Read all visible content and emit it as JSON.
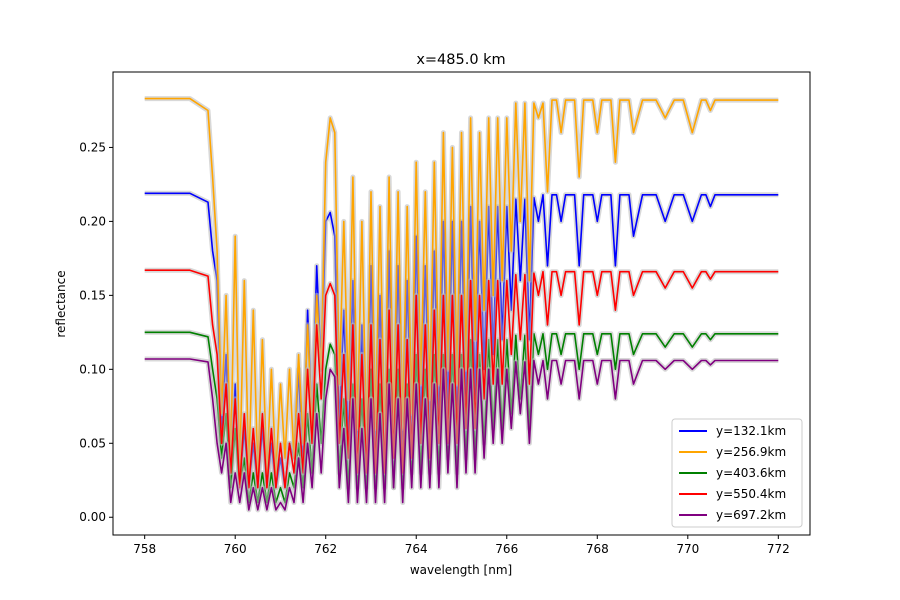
{
  "chart_data": {
    "type": "line",
    "title": "x=485.0 km",
    "xlabel": "wavelength [nm]",
    "ylabel": "reflectance",
    "xlim": [
      757.3,
      772.7
    ],
    "ylim": [
      -0.012,
      0.301
    ],
    "xticks": [
      758,
      760,
      762,
      764,
      766,
      768,
      770,
      772
    ],
    "xtick_labels": [
      "758",
      "760",
      "762",
      "764",
      "766",
      "768",
      "770",
      "772"
    ],
    "yticks": [
      0.0,
      0.05,
      0.1,
      0.15,
      0.2,
      0.25
    ],
    "ytick_labels": [
      "0.00",
      "0.05",
      "0.10",
      "0.15",
      "0.20",
      "0.25"
    ],
    "legend_position": "lower-right",
    "grid": false,
    "x": [
      758.0,
      759.0,
      759.4,
      759.5,
      759.6,
      759.7,
      759.8,
      759.9,
      760.0,
      760.1,
      760.2,
      760.3,
      760.4,
      760.5,
      760.6,
      760.7,
      760.8,
      760.9,
      761.0,
      761.1,
      761.2,
      761.3,
      761.4,
      761.5,
      761.6,
      761.7,
      761.8,
      761.9,
      762.0,
      762.1,
      762.2,
      762.3,
      762.4,
      762.5,
      762.6,
      762.7,
      762.8,
      762.9,
      763.0,
      763.1,
      763.2,
      763.3,
      763.4,
      763.5,
      763.6,
      763.7,
      763.8,
      763.9,
      764.0,
      764.1,
      764.2,
      764.3,
      764.4,
      764.5,
      764.6,
      764.7,
      764.8,
      764.9,
      765.0,
      765.1,
      765.2,
      765.3,
      765.4,
      765.5,
      765.6,
      765.7,
      765.8,
      765.9,
      766.0,
      766.1,
      766.2,
      766.3,
      766.4,
      766.5,
      766.6,
      766.7,
      766.8,
      766.9,
      767.0,
      767.1,
      767.2,
      767.3,
      767.4,
      767.5,
      767.6,
      767.7,
      767.8,
      767.9,
      768.0,
      768.1,
      768.2,
      768.3,
      768.4,
      768.5,
      768.6,
      768.7,
      768.8,
      769.0,
      769.1,
      769.2,
      769.3,
      769.5,
      769.7,
      769.8,
      769.9,
      770.1,
      770.3,
      770.4,
      770.5,
      770.6,
      770.8,
      771.0,
      771.5,
      772.0
    ],
    "series": [
      {
        "name": "y=132.1km",
        "color": "#0000ff",
        "values": [
          0.219,
          0.219,
          0.213,
          0.18,
          0.16,
          0.06,
          0.11,
          0.03,
          0.09,
          0.02,
          0.06,
          0.02,
          0.05,
          0.02,
          0.06,
          0.02,
          0.05,
          0.02,
          0.04,
          0.02,
          0.05,
          0.04,
          0.1,
          0.03,
          0.14,
          0.06,
          0.17,
          0.1,
          0.2,
          0.206,
          0.19,
          0.06,
          0.14,
          0.05,
          0.16,
          0.04,
          0.13,
          0.03,
          0.17,
          0.04,
          0.15,
          0.03,
          0.18,
          0.05,
          0.17,
          0.04,
          0.16,
          0.05,
          0.19,
          0.06,
          0.17,
          0.05,
          0.18,
          0.06,
          0.2,
          0.07,
          0.2,
          0.06,
          0.2,
          0.07,
          0.21,
          0.08,
          0.2,
          0.1,
          0.21,
          0.11,
          0.21,
          0.12,
          0.21,
          0.14,
          0.215,
          0.16,
          0.215,
          0.12,
          0.216,
          0.2,
          0.218,
          0.17,
          0.218,
          0.218,
          0.2,
          0.218,
          0.218,
          0.218,
          0.17,
          0.218,
          0.218,
          0.218,
          0.2,
          0.218,
          0.218,
          0.218,
          0.17,
          0.218,
          0.218,
          0.218,
          0.19,
          0.218,
          0.218,
          0.218,
          0.218,
          0.2,
          0.218,
          0.218,
          0.218,
          0.2,
          0.218,
          0.218,
          0.21,
          0.218,
          0.218,
          0.218,
          0.218,
          0.218
        ]
      },
      {
        "name": "y=256.9km",
        "color": "#ffa500",
        "values": [
          0.283,
          0.283,
          0.275,
          0.23,
          0.18,
          0.07,
          0.15,
          0.04,
          0.19,
          0.03,
          0.16,
          0.03,
          0.14,
          0.03,
          0.12,
          0.03,
          0.1,
          0.03,
          0.09,
          0.04,
          0.1,
          0.04,
          0.11,
          0.05,
          0.13,
          0.06,
          0.15,
          0.1,
          0.24,
          0.27,
          0.26,
          0.09,
          0.2,
          0.08,
          0.23,
          0.06,
          0.2,
          0.05,
          0.22,
          0.06,
          0.21,
          0.05,
          0.23,
          0.06,
          0.22,
          0.06,
          0.21,
          0.07,
          0.24,
          0.09,
          0.22,
          0.08,
          0.24,
          0.09,
          0.26,
          0.1,
          0.25,
          0.09,
          0.26,
          0.1,
          0.27,
          0.12,
          0.26,
          0.14,
          0.27,
          0.15,
          0.27,
          0.16,
          0.27,
          0.18,
          0.28,
          0.2,
          0.28,
          0.16,
          0.28,
          0.27,
          0.28,
          0.22,
          0.282,
          0.282,
          0.26,
          0.282,
          0.282,
          0.282,
          0.23,
          0.282,
          0.282,
          0.282,
          0.26,
          0.282,
          0.282,
          0.282,
          0.24,
          0.282,
          0.282,
          0.282,
          0.26,
          0.282,
          0.282,
          0.282,
          0.282,
          0.27,
          0.282,
          0.282,
          0.282,
          0.26,
          0.282,
          0.282,
          0.275,
          0.282,
          0.282,
          0.282,
          0.282,
          0.282
        ]
      },
      {
        "name": "y=403.6km",
        "color": "#008000",
        "values": [
          0.125,
          0.125,
          0.122,
          0.1,
          0.08,
          0.04,
          0.07,
          0.02,
          0.06,
          0.02,
          0.04,
          0.01,
          0.03,
          0.01,
          0.03,
          0.01,
          0.03,
          0.01,
          0.02,
          0.01,
          0.03,
          0.02,
          0.05,
          0.02,
          0.07,
          0.03,
          0.09,
          0.05,
          0.1,
          0.117,
          0.11,
          0.03,
          0.08,
          0.02,
          0.09,
          0.02,
          0.08,
          0.02,
          0.1,
          0.02,
          0.09,
          0.02,
          0.1,
          0.02,
          0.1,
          0.02,
          0.09,
          0.03,
          0.11,
          0.03,
          0.1,
          0.03,
          0.11,
          0.03,
          0.11,
          0.04,
          0.11,
          0.03,
          0.11,
          0.04,
          0.12,
          0.04,
          0.11,
          0.05,
          0.12,
          0.06,
          0.12,
          0.06,
          0.12,
          0.07,
          0.123,
          0.08,
          0.123,
          0.06,
          0.124,
          0.11,
          0.124,
          0.1,
          0.124,
          0.124,
          0.11,
          0.124,
          0.124,
          0.124,
          0.1,
          0.124,
          0.124,
          0.124,
          0.11,
          0.124,
          0.124,
          0.124,
          0.1,
          0.124,
          0.124,
          0.124,
          0.11,
          0.124,
          0.124,
          0.124,
          0.124,
          0.115,
          0.124,
          0.124,
          0.124,
          0.115,
          0.124,
          0.124,
          0.12,
          0.124,
          0.124,
          0.124,
          0.124,
          0.124
        ]
      },
      {
        "name": "y=550.4km",
        "color": "#ff0000",
        "values": [
          0.167,
          0.167,
          0.163,
          0.13,
          0.11,
          0.05,
          0.09,
          0.03,
          0.08,
          0.02,
          0.07,
          0.02,
          0.06,
          0.02,
          0.07,
          0.02,
          0.06,
          0.02,
          0.05,
          0.02,
          0.05,
          0.03,
          0.07,
          0.03,
          0.1,
          0.05,
          0.13,
          0.08,
          0.15,
          0.158,
          0.15,
          0.05,
          0.11,
          0.04,
          0.13,
          0.03,
          0.11,
          0.03,
          0.13,
          0.03,
          0.12,
          0.03,
          0.14,
          0.04,
          0.13,
          0.03,
          0.12,
          0.04,
          0.15,
          0.05,
          0.13,
          0.04,
          0.14,
          0.05,
          0.15,
          0.05,
          0.15,
          0.05,
          0.15,
          0.06,
          0.16,
          0.06,
          0.15,
          0.08,
          0.16,
          0.09,
          0.16,
          0.09,
          0.16,
          0.11,
          0.164,
          0.12,
          0.164,
          0.09,
          0.165,
          0.15,
          0.166,
          0.13,
          0.166,
          0.166,
          0.15,
          0.166,
          0.166,
          0.166,
          0.13,
          0.166,
          0.166,
          0.166,
          0.15,
          0.166,
          0.166,
          0.166,
          0.14,
          0.166,
          0.166,
          0.166,
          0.15,
          0.166,
          0.166,
          0.166,
          0.166,
          0.155,
          0.166,
          0.166,
          0.166,
          0.155,
          0.166,
          0.166,
          0.161,
          0.166,
          0.166,
          0.166,
          0.166,
          0.166
        ]
      },
      {
        "name": "y=697.2km",
        "color": "#800080",
        "values": [
          0.107,
          0.107,
          0.105,
          0.08,
          0.05,
          0.03,
          0.05,
          0.01,
          0.03,
          0.01,
          0.03,
          0.005,
          0.02,
          0.005,
          0.02,
          0.005,
          0.02,
          0.005,
          0.01,
          0.005,
          0.02,
          0.01,
          0.04,
          0.01,
          0.05,
          0.02,
          0.07,
          0.03,
          0.08,
          0.1,
          0.095,
          0.02,
          0.06,
          0.01,
          0.08,
          0.01,
          0.06,
          0.01,
          0.08,
          0.01,
          0.07,
          0.01,
          0.09,
          0.02,
          0.08,
          0.01,
          0.08,
          0.02,
          0.09,
          0.02,
          0.08,
          0.02,
          0.09,
          0.02,
          0.1,
          0.03,
          0.09,
          0.02,
          0.1,
          0.03,
          0.1,
          0.03,
          0.1,
          0.04,
          0.1,
          0.05,
          0.1,
          0.05,
          0.1,
          0.06,
          0.105,
          0.07,
          0.105,
          0.05,
          0.106,
          0.09,
          0.106,
          0.08,
          0.106,
          0.106,
          0.09,
          0.106,
          0.106,
          0.106,
          0.08,
          0.106,
          0.106,
          0.106,
          0.09,
          0.106,
          0.106,
          0.106,
          0.08,
          0.106,
          0.106,
          0.106,
          0.09,
          0.106,
          0.106,
          0.106,
          0.106,
          0.1,
          0.106,
          0.106,
          0.106,
          0.1,
          0.106,
          0.106,
          0.103,
          0.106,
          0.106,
          0.106,
          0.106,
          0.106
        ]
      }
    ]
  }
}
